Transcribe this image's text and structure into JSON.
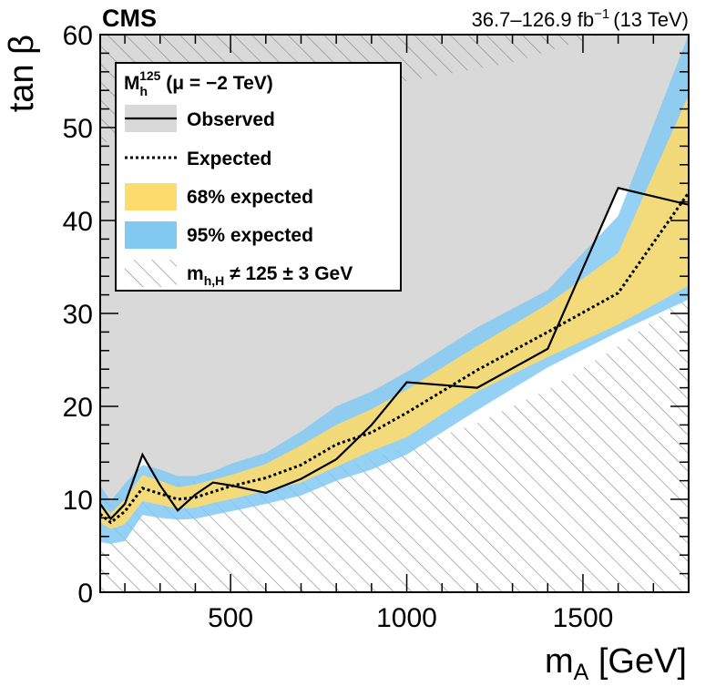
{
  "chart_data": {
    "type": "area",
    "experiment": "CMS",
    "lumi": {
      "range": "36.7–126.9 fb",
      "exp": "−1",
      "energy": "(13 TeV)"
    },
    "xlabel": {
      "main": "m",
      "sub": "A",
      "unit": " [GeV]"
    },
    "ylabel": "tan β",
    "xlim": [
      130,
      1800
    ],
    "ylim": [
      0,
      60
    ],
    "xticks": [
      500,
      1000,
      1500
    ],
    "yticks": [
      0,
      10,
      20,
      30,
      40,
      50,
      60
    ],
    "x_tick_labels": [
      "500",
      "1000",
      "1500"
    ],
    "y_tick_labels": [
      "0",
      "10",
      "20",
      "30",
      "40",
      "50",
      "60"
    ],
    "legend": {
      "header_main": "M",
      "header_sub": "h",
      "header_sup": "125",
      "header_rest": " (μ = −2 TeV)",
      "observed": "Observed",
      "expected": "Expected",
      "band68": "68% expected",
      "band95": "95% expected",
      "hatched_main": "m",
      "hatched_sub": "h,H",
      "hatched_rest": " ≠ 125 ± 3 GeV"
    },
    "x": [
      130,
      160,
      200,
      250,
      300,
      350,
      400,
      450,
      500,
      600,
      700,
      800,
      900,
      1000,
      1200,
      1400,
      1600,
      1800
    ],
    "observed": [
      9.5,
      7.9,
      9.5,
      14.8,
      11.5,
      8.8,
      10.5,
      11.8,
      11.5,
      10.7,
      12.2,
      14.3,
      18.0,
      22.6,
      22.0,
      26.2,
      43.5,
      41.7
    ],
    "expected": [
      8.4,
      7.5,
      8.7,
      11.2,
      10.6,
      10.0,
      10.2,
      10.8,
      11.4,
      12.3,
      13.7,
      15.9,
      17.2,
      19.3,
      23.9,
      28.0,
      32.2,
      43.0
    ],
    "band68_lower": [
      7.5,
      6.8,
      7.3,
      9.8,
      9.4,
      9.0,
      9.1,
      9.6,
      10.0,
      10.9,
      11.8,
      13.5,
      15.2,
      16.7,
      21.6,
      25.3,
      28.8,
      33.0
    ],
    "band68_upper": [
      9.5,
      8.5,
      10.0,
      12.6,
      12.0,
      11.3,
      11.6,
      12.1,
      12.6,
      13.8,
      15.8,
      18.0,
      19.7,
      21.8,
      26.5,
      31.0,
      36.5,
      53.5
    ],
    "band95_lower": [
      5.4,
      5.2,
      5.5,
      8.3,
      8.0,
      7.8,
      7.9,
      8.3,
      8.7,
      9.5,
      10.4,
      12.0,
      13.2,
      14.8,
      19.6,
      24.2,
      28.0,
      31.5
    ],
    "band95_upper": [
      11.5,
      9.8,
      11.7,
      13.7,
      13.2,
      12.5,
      12.5,
      13.0,
      13.8,
      15.0,
      17.3,
      20.0,
      21.6,
      23.7,
      28.5,
      32.5,
      40.5,
      60.0
    ],
    "colors": {
      "band68": "#fddc6e",
      "band95": "#82c9f2",
      "excluded": "#d9d9d9",
      "hatch": "#8a8a8a",
      "line": "#000000"
    }
  }
}
